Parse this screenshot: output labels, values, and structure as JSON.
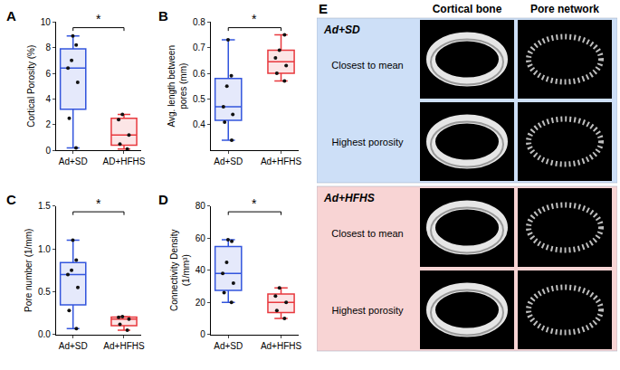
{
  "chart_data": [
    {
      "type": "box",
      "label": "A",
      "y_label": "Cortical Porosity (%)",
      "categories": [
        "Ad+SD",
        "AD+HFHS"
      ],
      "colors": [
        "#3355dd",
        "#e8383d"
      ],
      "values": [
        [
          0.2,
          2.5,
          5.3,
          6.4,
          7.0,
          8.2,
          8.9
        ],
        [
          0.1,
          0.5,
          1.2,
          2.4,
          2.8
        ]
      ],
      "ylim": [
        0,
        10
      ],
      "yticks": [
        0,
        2,
        4,
        6,
        8,
        10
      ],
      "grid": false,
      "annotations": [
        "*"
      ]
    },
    {
      "type": "box",
      "label": "B",
      "y_label": "Avg. length between pores (mm)",
      "categories": [
        "Ad+SD",
        "Ad+HFHS"
      ],
      "colors": [
        "#3355dd",
        "#e8383d"
      ],
      "values": [
        [
          0.34,
          0.41,
          0.44,
          0.47,
          0.55,
          0.59,
          0.73
        ],
        [
          0.57,
          0.6,
          0.63,
          0.66,
          0.69,
          0.75
        ]
      ],
      "ylim": [
        0.3,
        0.8
      ],
      "yticks": [
        0.4,
        0.5,
        0.6,
        0.7,
        0.8
      ],
      "grid": false,
      "annotations": [
        "*"
      ]
    },
    {
      "type": "box",
      "label": "C",
      "y_label": "Pore number (1/mm)",
      "categories": [
        "Ad+SD",
        "Ad+HFHS"
      ],
      "colors": [
        "#3355dd",
        "#e8383d"
      ],
      "values": [
        [
          0.07,
          0.28,
          0.55,
          0.7,
          0.75,
          0.87,
          1.1
        ],
        [
          0.05,
          0.12,
          0.18,
          0.2,
          0.21
        ]
      ],
      "ylim": [
        0,
        1.5
      ],
      "yticks": [
        {
          "value": 0,
          "label": "0.0"
        },
        0.5,
        {
          "value": 1,
          "label": "1.0"
        },
        1.5
      ],
      "grid": false,
      "annotations": [
        "*"
      ]
    },
    {
      "type": "box",
      "label": "D",
      "y_label": "Connectivity Density (1/mm³)",
      "categories": [
        "Ad+SD",
        "Ad+HFHS"
      ],
      "colors": [
        "#3355dd",
        "#e8383d"
      ],
      "values": [
        [
          20,
          26,
          32,
          38,
          45,
          58,
          59
        ],
        [
          10,
          15,
          20,
          24,
          29
        ]
      ],
      "ylim": [
        0,
        80
      ],
      "yticks": [
        0,
        20,
        40,
        60,
        80
      ],
      "grid": false,
      "annotations": [
        "*"
      ]
    }
  ],
  "panel_e": {
    "label": "E",
    "columns": [
      "Cortical bone",
      "Pore network"
    ],
    "groups": [
      {
        "name": "Ad+SD",
        "color": "#cddff7",
        "rows": [
          "Closest to mean",
          "Highest porosity"
        ]
      },
      {
        "name": "Ad+HFHS",
        "color": "#f8d4d4",
        "rows": [
          "Closest to mean",
          "Highest porosity"
        ]
      }
    ]
  }
}
